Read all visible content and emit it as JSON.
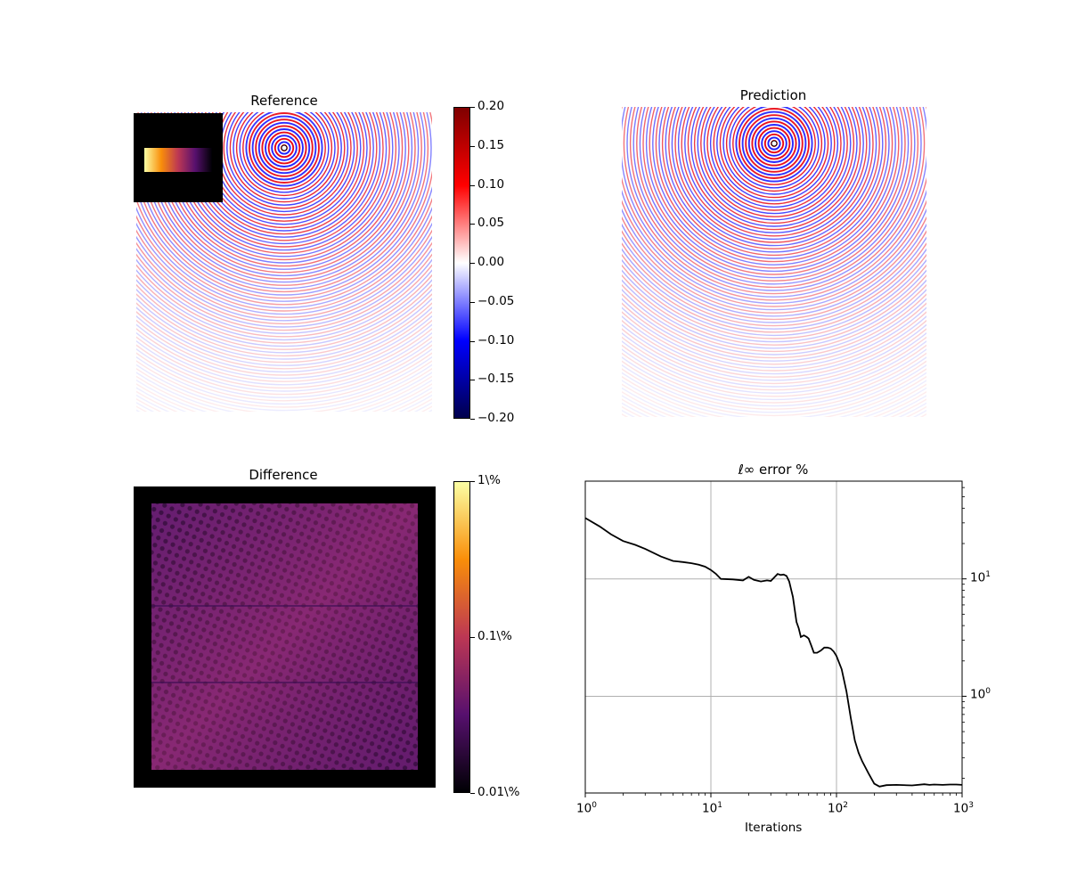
{
  "chart_data": [
    {
      "type": "heatmap",
      "title": "Reference",
      "colormap": "seismic",
      "colorbar": {
        "ticks": [
          0.2,
          0.15,
          0.1,
          0.05,
          0.0,
          -0.05,
          -0.1,
          -0.15,
          -0.2
        ],
        "tick_labels": [
          "0.20",
          "0.15",
          "0.10",
          "0.05",
          "0.00",
          "−0.05",
          "−0.10",
          "−0.15",
          "−0.20"
        ],
        "range": [
          -0.2,
          0.2
        ],
        "colors": [
          "#7f0000",
          "#ff0000",
          "#ffffff",
          "#0000ff",
          "#00004d"
        ]
      },
      "inset": {
        "colormap": "inferno",
        "background": "#000000"
      }
    },
    {
      "type": "heatmap",
      "title": "Prediction",
      "colormap": "seismic"
    },
    {
      "type": "heatmap",
      "title": "Difference",
      "colormap": "inferno",
      "colorbar": {
        "scale": "log",
        "tick_labels": [
          "1\\%",
          "0.1\\%",
          "0.01\\%"
        ],
        "range": [
          0.01,
          1
        ]
      },
      "background": "#000000"
    },
    {
      "type": "line",
      "title": "ℓ∞ error %",
      "xlabel": "Iterations",
      "ylabel": "",
      "xscale": "log",
      "yscale": "log",
      "xlim": [
        1,
        1000
      ],
      "ylim": [
        0.15,
        68
      ],
      "x_tick_labels": [
        "10",
        "10",
        "10",
        "10"
      ],
      "x_tick_exponents": [
        "0",
        "1",
        "2",
        "3"
      ],
      "y_tick_labels": [
        "10",
        "10"
      ],
      "y_tick_exponents": [
        "1",
        "0"
      ],
      "y_axis_side": "right",
      "grid": true,
      "line_color": "#000000",
      "series": [
        {
          "x": [
            1,
            1.3,
            1.6,
            2,
            2.5,
            3,
            4,
            5,
            6,
            7,
            8,
            9,
            10,
            11,
            12,
            15,
            18,
            20,
            22,
            25,
            28,
            30,
            32,
            34,
            36,
            38,
            40,
            42,
            45,
            48,
            50,
            52,
            55,
            58,
            60,
            63,
            66,
            70,
            75,
            80,
            85,
            90,
            95,
            100,
            110,
            120,
            130,
            140,
            150,
            160,
            180,
            200,
            220,
            250,
            300,
            400,
            500,
            550,
            600,
            700,
            800,
            900,
            1000
          ],
          "y": [
            33,
            28,
            24,
            21,
            19.5,
            18,
            15.5,
            14.2,
            13.9,
            13.6,
            13.2,
            12.7,
            11.9,
            11.0,
            10.0,
            9.9,
            9.7,
            10.4,
            9.8,
            9.5,
            9.7,
            9.6,
            10.3,
            11.0,
            10.8,
            10.9,
            10.6,
            9.5,
            7.0,
            4.3,
            3.8,
            3.2,
            3.3,
            3.2,
            3.1,
            2.7,
            2.35,
            2.35,
            2.45,
            2.6,
            2.6,
            2.55,
            2.4,
            2.2,
            1.7,
            1.1,
            0.65,
            0.42,
            0.33,
            0.28,
            0.22,
            0.18,
            0.17,
            0.175,
            0.176,
            0.174,
            0.178,
            0.176,
            0.177,
            0.176,
            0.177,
            0.177,
            0.176
          ]
        }
      ]
    }
  ]
}
